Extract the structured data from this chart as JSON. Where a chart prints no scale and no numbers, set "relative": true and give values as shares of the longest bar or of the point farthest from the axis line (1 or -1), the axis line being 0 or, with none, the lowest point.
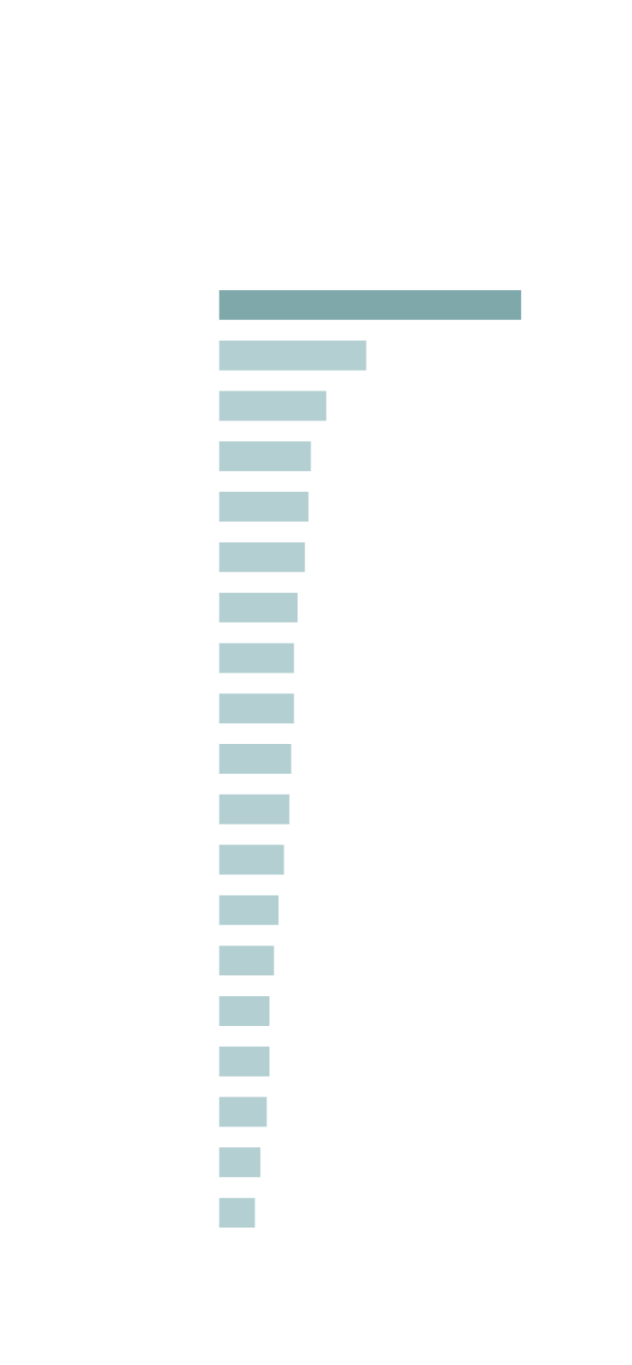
{
  "chart_data": {
    "type": "bar",
    "orientation": "horizontal",
    "relative": true,
    "categories": [
      null,
      null,
      null,
      null,
      null,
      null,
      null,
      null,
      null,
      null,
      null,
      null,
      null,
      null,
      null,
      null,
      null,
      null,
      null
    ],
    "values": [
      1,
      0.487,
      0.355,
      0.304,
      0.296,
      0.284,
      0.26,
      0.248,
      0.248,
      0.239,
      0.233,
      0.215,
      0.197,
      0.182,
      0.167,
      0.167,
      0.158,
      0.137,
      0.119
    ],
    "colors": [
      "#7fa8ab",
      "#b4cfd2",
      "#b4cfd2",
      "#b4cfd2",
      "#b4cfd2",
      "#b4cfd2",
      "#b4cfd2",
      "#b4cfd2",
      "#b4cfd2",
      "#b4cfd2",
      "#b4cfd2",
      "#b4cfd2",
      "#b4cfd2",
      "#b4cfd2",
      "#b4cfd2",
      "#b4cfd2",
      "#b4cfd2",
      "#b4cfd2",
      "#b4cfd2"
    ]
  }
}
